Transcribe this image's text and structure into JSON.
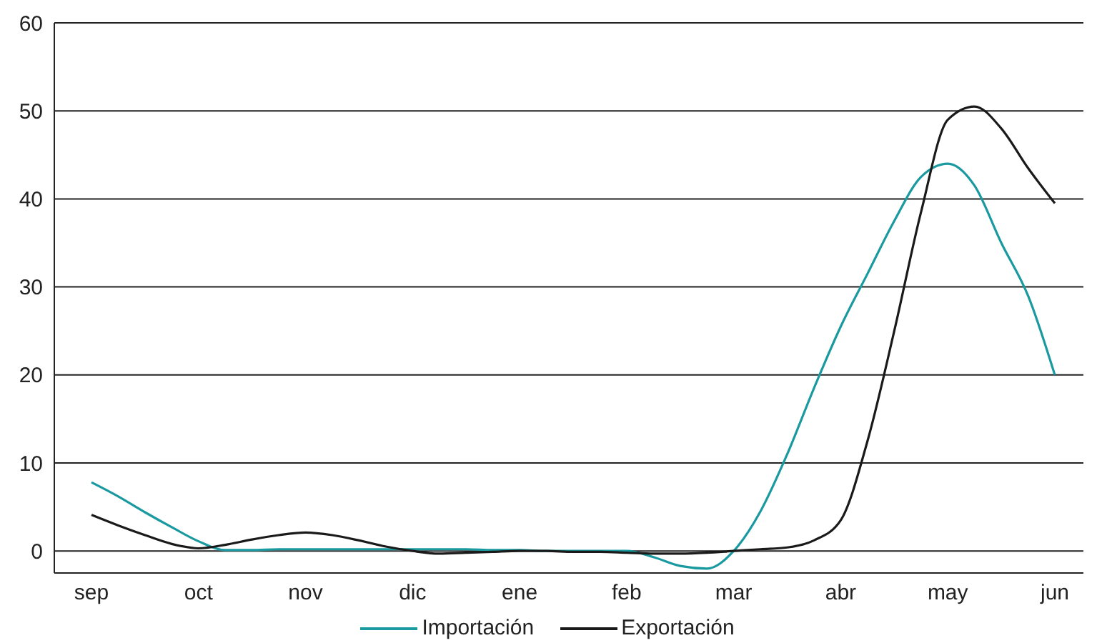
{
  "chart_data": {
    "type": "line",
    "categories": [
      "sep",
      null,
      null,
      null,
      "oct",
      null,
      null,
      null,
      "nov",
      null,
      null,
      null,
      "dic",
      null,
      null,
      null,
      "ene",
      null,
      null,
      null,
      "feb",
      null,
      null,
      null,
      "mar",
      null,
      null,
      null,
      "abr",
      null,
      null,
      null,
      "may",
      null,
      null,
      null,
      "jun"
    ],
    "ylim": [
      -2.5,
      60
    ],
    "yticks": [
      0,
      10,
      20,
      30,
      40,
      50,
      60
    ],
    "grid": "y",
    "legend": "bottom",
    "marker": "none",
    "line_style": "solid",
    "series": [
      {
        "name": "Importación",
        "color": "#1a9aa0",
        "values": [
          7.8,
          6.2,
          4.4,
          2.7,
          1.1,
          0.1,
          0.1,
          0.2,
          0.2,
          0.2,
          0.2,
          0.2,
          0.2,
          0.2,
          0.2,
          0.1,
          0.1,
          0,
          0,
          0,
          0,
          -0.7,
          -1.7,
          -2,
          0,
          4.5,
          11,
          18.5,
          25.5,
          31.5,
          37.5,
          42.5,
          44,
          41.5,
          35,
          29,
          20
        ]
      },
      {
        "name": "Exportación",
        "color": "#1a1a1a",
        "values": [
          4.1,
          2.9,
          1.8,
          0.8,
          0.3,
          0.7,
          1.3,
          1.8,
          2.1,
          1.8,
          1.2,
          0.5,
          0,
          -0.3,
          -0.2,
          -0.1,
          0,
          0,
          -0.1,
          -0.1,
          -0.2,
          -0.3,
          -0.3,
          -0.2,
          0,
          0.2,
          0.4,
          1.2,
          3.5,
          12.5,
          25,
          38.5,
          49,
          50.5,
          48,
          43.5,
          39.5
        ]
      }
    ]
  }
}
